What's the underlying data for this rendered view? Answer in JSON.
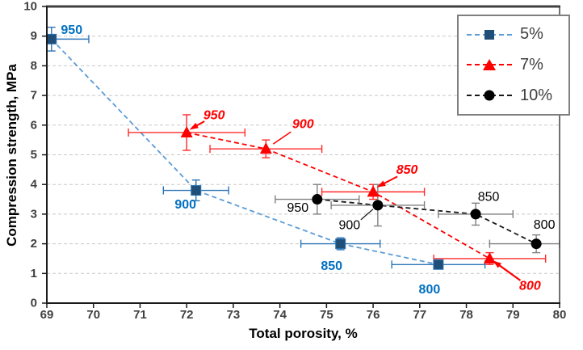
{
  "chart_data": {
    "type": "scatter",
    "title": "",
    "xlabel": "Total porosity, %",
    "ylabel": "Compression strength, MPa",
    "xlim": [
      69,
      80
    ],
    "ylim": [
      0,
      10
    ],
    "x_ticks": [
      69,
      70,
      71,
      72,
      73,
      74,
      75,
      76,
      77,
      78,
      79,
      80
    ],
    "y_ticks": [
      0,
      1,
      2,
      3,
      4,
      5,
      6,
      7,
      8,
      9,
      10
    ],
    "grid": "horizontal-dashed",
    "grid_color": "#C8C8C8",
    "frame_color": "#404040",
    "axis_color": "#1a1a1a",
    "tick_label_color": "#404040",
    "legend_position": "top-right",
    "series": [
      {
        "name": "5%",
        "marker": "square",
        "marker_color": "#1F4E79",
        "line_color": "#5B9BD5",
        "error_color": "#2E75B6",
        "label_color": "#0070C0",
        "label_weight": "bold",
        "label_style": "normal",
        "points": [
          {
            "x": 69.1,
            "y": 8.9,
            "xerr_minus": 0.1,
            "xerr_plus": 0.8,
            "yerr": 0.4,
            "label": "950",
            "label_dx": 25,
            "label_dy": -11
          },
          {
            "x": 72.2,
            "y": 3.8,
            "xerr_minus": 0.7,
            "xerr_plus": 0.7,
            "yerr": 0.35,
            "label": "900",
            "label_dx": -13,
            "label_dy": 18
          },
          {
            "x": 75.3,
            "y": 2.0,
            "xerr_minus": 0.85,
            "xerr_plus": 0.85,
            "yerr": 0.2,
            "label": "850",
            "label_dx": -11,
            "label_dy": 28
          },
          {
            "x": 77.4,
            "y": 1.3,
            "xerr_minus": 1.0,
            "xerr_plus": 1.0,
            "yerr": 0.15,
            "label": "800",
            "label_dx": -11,
            "label_dy": 31
          }
        ]
      },
      {
        "name": "7%",
        "marker": "triangle",
        "marker_color": "#FF0000",
        "line_color": "#FF0000",
        "error_color": "#FF2A2A",
        "label_color": "#FF0000",
        "label_weight": "bold",
        "label_style": "italic",
        "points": [
          {
            "x": 72.0,
            "y": 5.75,
            "xerr_minus": 1.25,
            "xerr_plus": 1.25,
            "yerr": 0.6,
            "label": "950",
            "label_dx": 34,
            "label_dy": -21,
            "leader": [
              22,
              -14,
              6,
              -5
            ],
            "leader_arrow": true,
            "leader_width": 2
          },
          {
            "x": 73.7,
            "y": 5.2,
            "xerr_minus": 1.2,
            "xerr_plus": 1.2,
            "yerr": 0.3,
            "label": "900",
            "label_dx": 46,
            "label_dy": -30,
            "leader": [
              31,
              -21,
              9,
              -6
            ],
            "leader_arrow": false,
            "leader_width": 1.5
          },
          {
            "x": 76.0,
            "y": 3.75,
            "xerr_minus": 1.1,
            "xerr_plus": 1.1,
            "yerr": 0.25,
            "label": "850",
            "label_dx": 42,
            "label_dy": -27,
            "leader": [
              30,
              -19,
              7,
              -7
            ],
            "leader_arrow": true,
            "leader_width": 2
          },
          {
            "x": 78.5,
            "y": 1.5,
            "xerr_minus": 1.2,
            "xerr_plus": 1.2,
            "yerr": 0.2,
            "label": "800",
            "label_dx": 50,
            "label_dy": 34,
            "leader": [
              38,
              27,
              6,
              4
            ],
            "leader_arrow": true,
            "leader_width": 2.2
          }
        ]
      },
      {
        "name": "10%",
        "marker": "circle",
        "marker_color": "#000000",
        "line_color": "#1a1a1a",
        "error_color": "#808080",
        "label_color": "#000000",
        "label_weight": "normal",
        "label_style": "normal",
        "points": [
          {
            "x": 74.8,
            "y": 3.5,
            "xerr_minus": 0.9,
            "xerr_plus": 0.9,
            "yerr": 0.5,
            "label": "950",
            "label_dx": -24,
            "label_dy": 11
          },
          {
            "x": 76.1,
            "y": 3.3,
            "xerr_minus": 1.0,
            "xerr_plus": 1.0,
            "yerr": 0.7,
            "label": "900",
            "label_dx": -35,
            "label_dy": 25,
            "leader": [
              -21,
              18,
              -6,
              5
            ],
            "leader_arrow": false,
            "leader_width": 1.2
          },
          {
            "x": 78.2,
            "y": 3.0,
            "xerr_minus": 0.8,
            "xerr_plus": 0.8,
            "yerr": 0.37,
            "label": "850",
            "label_dx": 16,
            "label_dy": -21
          },
          {
            "x": 79.5,
            "y": 2.0,
            "xerr_minus": 1.0,
            "xerr_plus": 0.5,
            "yerr": 0.3,
            "label": "800",
            "label_dx": 10,
            "label_dy": -23
          }
        ]
      }
    ]
  }
}
